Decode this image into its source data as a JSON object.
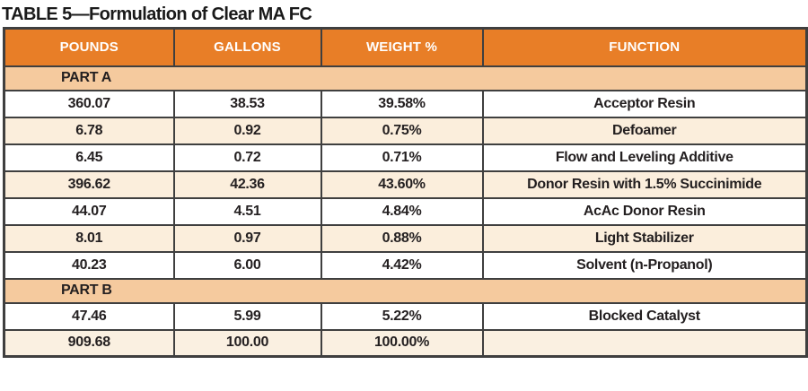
{
  "title": "TABLE 5—Formulation of Clear MA FC",
  "table": {
    "columns": [
      "POUNDS",
      "GALLONS",
      "WEIGHT %",
      "FUNCTION"
    ],
    "part_a": {
      "label": "PART A",
      "rows": [
        {
          "pounds": "360.07",
          "gallons": "38.53",
          "weight": "39.58%",
          "function": "Acceptor Resin"
        },
        {
          "pounds": "6.78",
          "gallons": "0.92",
          "weight": "0.75%",
          "function": "Defoamer"
        },
        {
          "pounds": "6.45",
          "gallons": "0.72",
          "weight": "0.71%",
          "function": "Flow and Leveling Additive"
        },
        {
          "pounds": "396.62",
          "gallons": "42.36",
          "weight": "43.60%",
          "function": "Donor Resin with 1.5% Succinimide"
        },
        {
          "pounds": "44.07",
          "gallons": "4.51",
          "weight": "4.84%",
          "function": "AcAc Donor Resin"
        },
        {
          "pounds": "8.01",
          "gallons": "0.97",
          "weight": "0.88%",
          "function": "Light Stabilizer"
        },
        {
          "pounds": "40.23",
          "gallons": "6.00",
          "weight": "4.42%",
          "function": "Solvent (n-Propanol)"
        }
      ]
    },
    "part_b": {
      "label": "PART B",
      "rows": [
        {
          "pounds": "47.46",
          "gallons": "5.99",
          "weight": "5.22%",
          "function": "Blocked Catalyst"
        }
      ]
    },
    "total": {
      "pounds": "909.68",
      "gallons": "100.00",
      "weight": "100.00%",
      "function": ""
    }
  },
  "colors": {
    "header_bg": "#e87e27",
    "header_text": "#ffffff",
    "section_bg": "#f5ca9e",
    "row_cream_bg": "#fbeedc",
    "total_row_bg": "#faf0e1",
    "border": "#3f3f3f",
    "body_text": "#231f20"
  }
}
